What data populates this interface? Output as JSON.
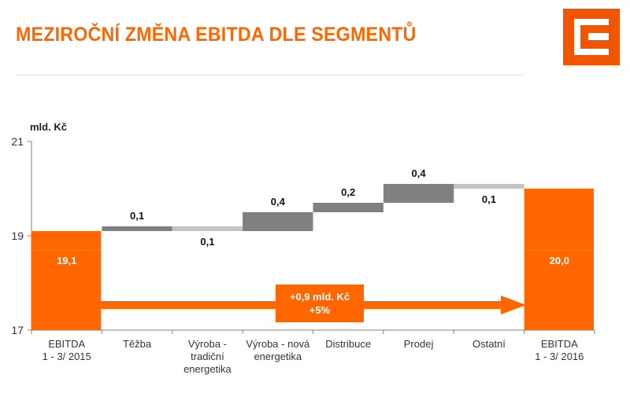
{
  "header": {
    "title": "MEZIROČNÍ ZMĚNA EBITDA DLE SEGMENTŮ",
    "logo_icon": "cez-logo-icon"
  },
  "colors": {
    "accent": "#ff6600",
    "increase": "#808080",
    "decrease": "#c4c4c4",
    "axis": "#808080"
  },
  "chart_data": {
    "type": "waterfall",
    "ylabel": "mld. Kč",
    "ylim": [
      17,
      21
    ],
    "yticks": [
      "17",
      "19",
      "21"
    ],
    "ytick_values": [
      17,
      19,
      21
    ],
    "categories": [
      [
        "EBITDA",
        "1 - 3/ 2015"
      ],
      [
        "Těžba"
      ],
      [
        "Výroba -",
        "tradiční",
        "energetika"
      ],
      [
        "Výroba - nová",
        "energetika"
      ],
      [
        "Distribuce"
      ],
      [
        "Prodej"
      ],
      [
        "Ostatní"
      ],
      [
        "EBITDA",
        "1 - 3/ 2016"
      ]
    ],
    "bars": [
      {
        "kind": "total",
        "value": 19.1,
        "label": "19,1"
      },
      {
        "kind": "delta",
        "value": 0.1,
        "label": "0,1"
      },
      {
        "kind": "delta",
        "value": -0.1,
        "label": "0,1"
      },
      {
        "kind": "delta",
        "value": 0.4,
        "label": "0,4"
      },
      {
        "kind": "delta",
        "value": 0.2,
        "label": "0,2"
      },
      {
        "kind": "delta",
        "value": 0.4,
        "label": "0,4"
      },
      {
        "kind": "delta",
        "value": -0.1,
        "label": "0,1"
      },
      {
        "kind": "total",
        "value": 20.0,
        "label": "20,0"
      }
    ],
    "annotation": {
      "line1": "+0,9 mld. Kč",
      "line2": "+5%"
    },
    "grid": false
  }
}
